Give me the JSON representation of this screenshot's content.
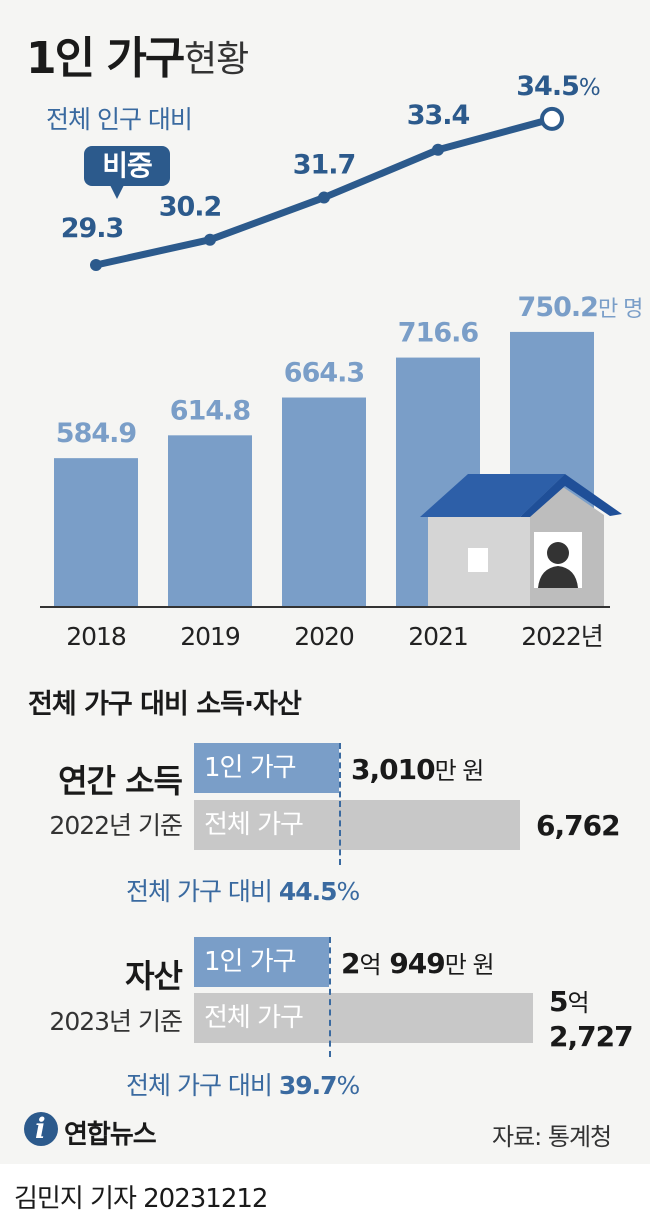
{
  "title": {
    "main": "1인 가구",
    "sub": "현황"
  },
  "chart_data": {
    "type": "bar",
    "categories": [
      "2018",
      "2019",
      "2020",
      "2021",
      "2022"
    ],
    "last_category_suffix": "년",
    "series": [
      {
        "values": [
          584.9,
          614.8,
          664.3,
          716.6,
          750.2
        ],
        "labels": [
          "584.9",
          "614.8",
          "664.3",
          "716.6",
          "750.2"
        ],
        "unit": "만 명",
        "color": "#7a9ec8"
      },
      {
        "values": [
          29.3,
          30.2,
          31.7,
          33.4,
          34.5
        ],
        "labels": [
          "29.3",
          "30.2",
          "31.7",
          "33.4",
          "34.5"
        ],
        "unit": "%",
        "color": "#2c5a8c"
      }
    ],
    "line_caption": "전체 인구 대비",
    "line_badge": "비중"
  },
  "income": {
    "title": "연간 소득",
    "basis": "2022년 기준",
    "single": {
      "label": "1인 가구",
      "value": 3010,
      "text": "3,010",
      "unit": "만 원"
    },
    "total": {
      "label": "전체 가구",
      "value": 6762,
      "text": "6,762"
    },
    "ratio_label": "전체 가구 대비",
    "ratio_value": "44.5",
    "ratio_unit": "%"
  },
  "assets": {
    "title": "자산",
    "basis": "2023년 기준",
    "single": {
      "label": "1인 가구",
      "value": 20949,
      "eok": "2",
      "eok_unit": "억",
      "man": "949",
      "man_unit": "만 원"
    },
    "total": {
      "label": "전체 가구",
      "value": 52727,
      "eok": "5",
      "eok_unit": "억",
      "man": "2,727"
    },
    "ratio_label": "전체 가구 대비",
    "ratio_value": "39.7",
    "ratio_unit": "%"
  },
  "section_title": "전체 가구 대비 소득·자산",
  "logo_text": "연합뉴스",
  "source": "자료: 통계청",
  "byline": "김민지 기자  20231212",
  "colors": {
    "bar": "#7a9ec8",
    "line": "#2c5a8c",
    "accent": "#3a6aa0",
    "grey": "#c8c8c8"
  }
}
